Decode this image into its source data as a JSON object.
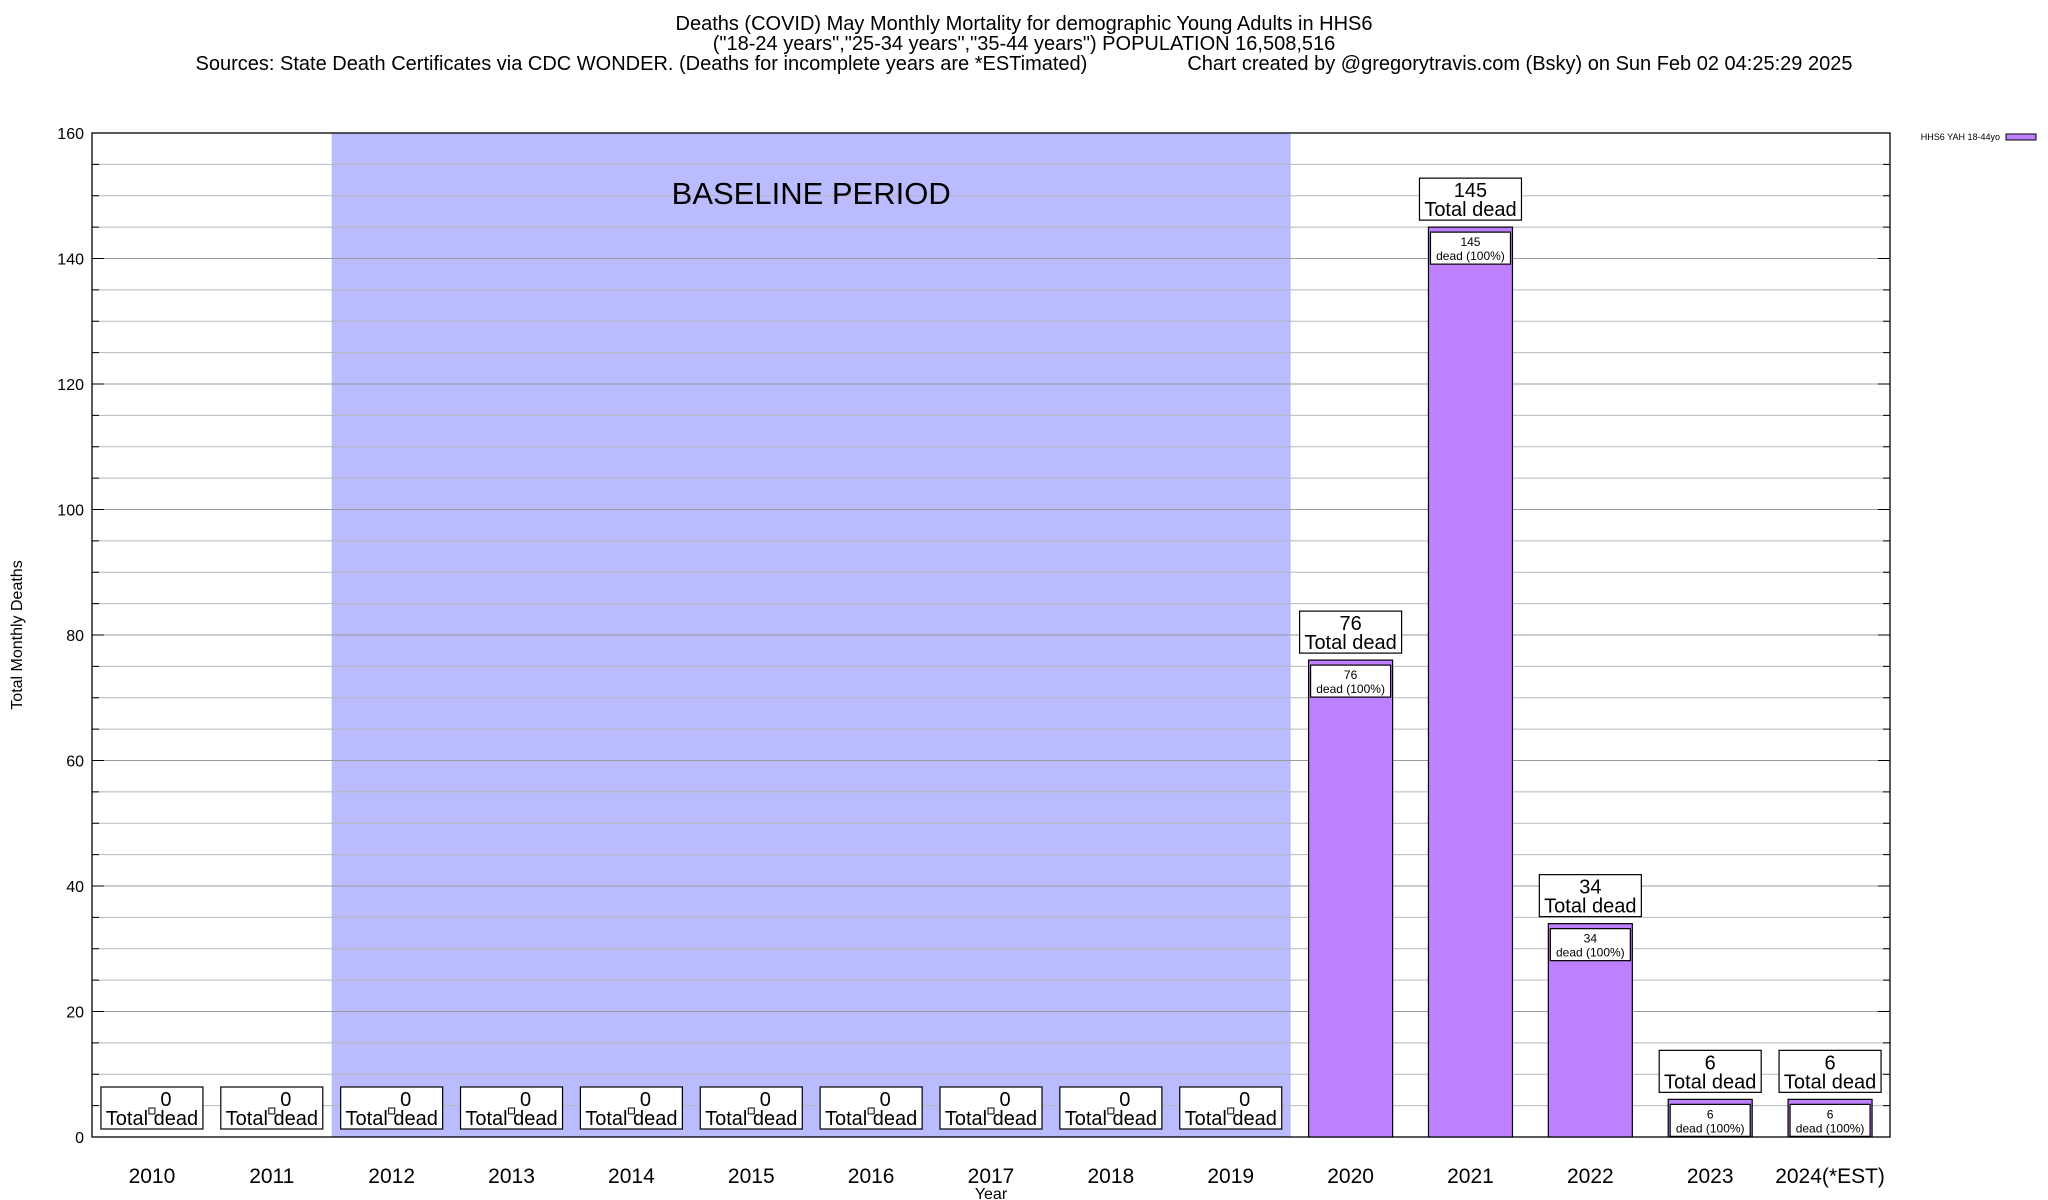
{
  "header": {
    "line1": "Deaths (COVID) May Monthly Mortality for demographic Young Adults in HHS6",
    "line2": "(\"18-24 years\",\"25-34 years\",\"35-44 years\") POPULATION 16,508,516",
    "line3": "Sources: State Death Certificates via CDC WONDER. (Deaths for incomplete years are *ESTimated)                  Chart created by @gregorytravis.com (Bsky) on Sun Feb 02 04:25:29 2025"
  },
  "chart_data": {
    "type": "bar",
    "categories": [
      "2010",
      "2011",
      "2012",
      "2013",
      "2014",
      "2015",
      "2016",
      "2017",
      "2018",
      "2019",
      "2020",
      "2021",
      "2022",
      "2023",
      "2024(*EST)"
    ],
    "series": [
      {
        "name": "HHS6 YAH 18-44yo",
        "values": [
          0,
          0,
          0,
          0,
          0,
          0,
          0,
          0,
          0,
          0,
          76,
          145,
          34,
          6,
          6
        ]
      }
    ],
    "xlabel": "Year",
    "ylabel": "Total Monthly Deaths",
    "ylim": [
      0,
      160
    ],
    "yticks": [
      0,
      20,
      40,
      60,
      80,
      100,
      120,
      140,
      160
    ],
    "total_label": "Total dead",
    "inner_label_suffix": "dead (100%)",
    "baseline_text": "BASELINE PERIOD",
    "baseline_range": [
      "2012",
      "2019"
    ],
    "legend_position": "top-right",
    "grid": true,
    "bar_color": "#bf80ff",
    "baseline_color": "#bbbbff"
  }
}
